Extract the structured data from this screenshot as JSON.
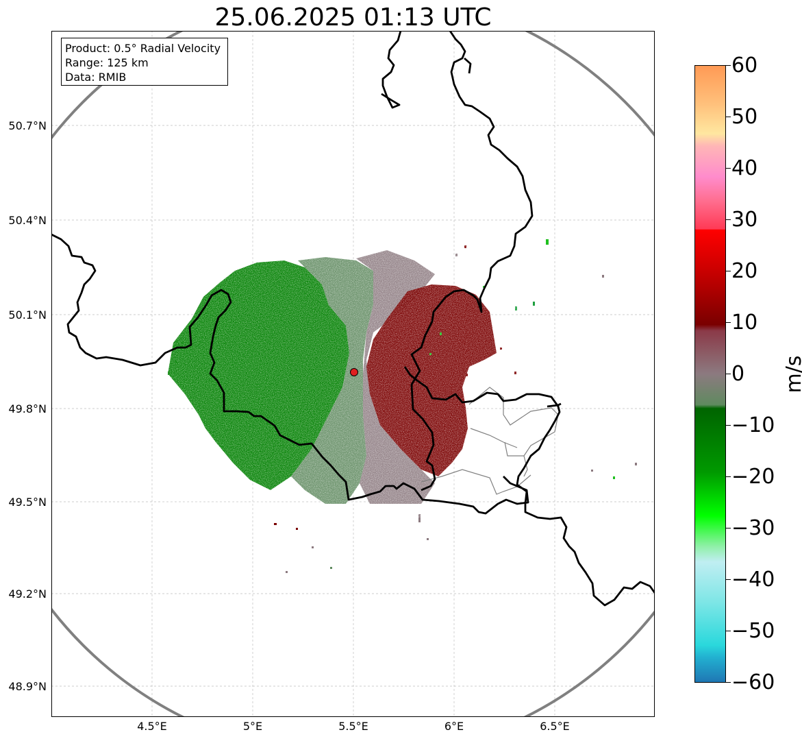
{
  "title": "25.06.2025 01:13 UTC",
  "info": {
    "product": "Product: 0.5° Radial Velocity",
    "range": "Range: 125 km",
    "data": "Data: RMIB"
  },
  "y_ticks": [
    "50.7°N",
    "50.4°N",
    "50.1°N",
    "49.8°N",
    "49.5°N",
    "49.2°N",
    "48.9°N"
  ],
  "x_ticks": [
    "4.5°E",
    "5°E",
    "5.5°E",
    "6°E",
    "6.5°E"
  ],
  "colorbar": {
    "unit": "m/s",
    "ticks": [
      "60",
      "50",
      "40",
      "30",
      "20",
      "10",
      "0",
      "−10",
      "−20",
      "−30",
      "−40",
      "−50",
      "−60"
    ],
    "range": [
      -60,
      60
    ]
  },
  "map": {
    "lon_range": [
      4.0,
      7.0
    ],
    "lat_range": [
      48.8,
      51.0
    ],
    "radar_site": {
      "lon": 5.5,
      "lat": 49.91
    },
    "range_ring_km": 125
  },
  "colors": {
    "inbound_strong": "#008000",
    "inbound_weak": "#5f8a5f",
    "near_zero": "#8c7a80",
    "outbound": "#7a0000",
    "border": "#000000",
    "range_ring": "#808080",
    "radar_site": "#e02020"
  }
}
